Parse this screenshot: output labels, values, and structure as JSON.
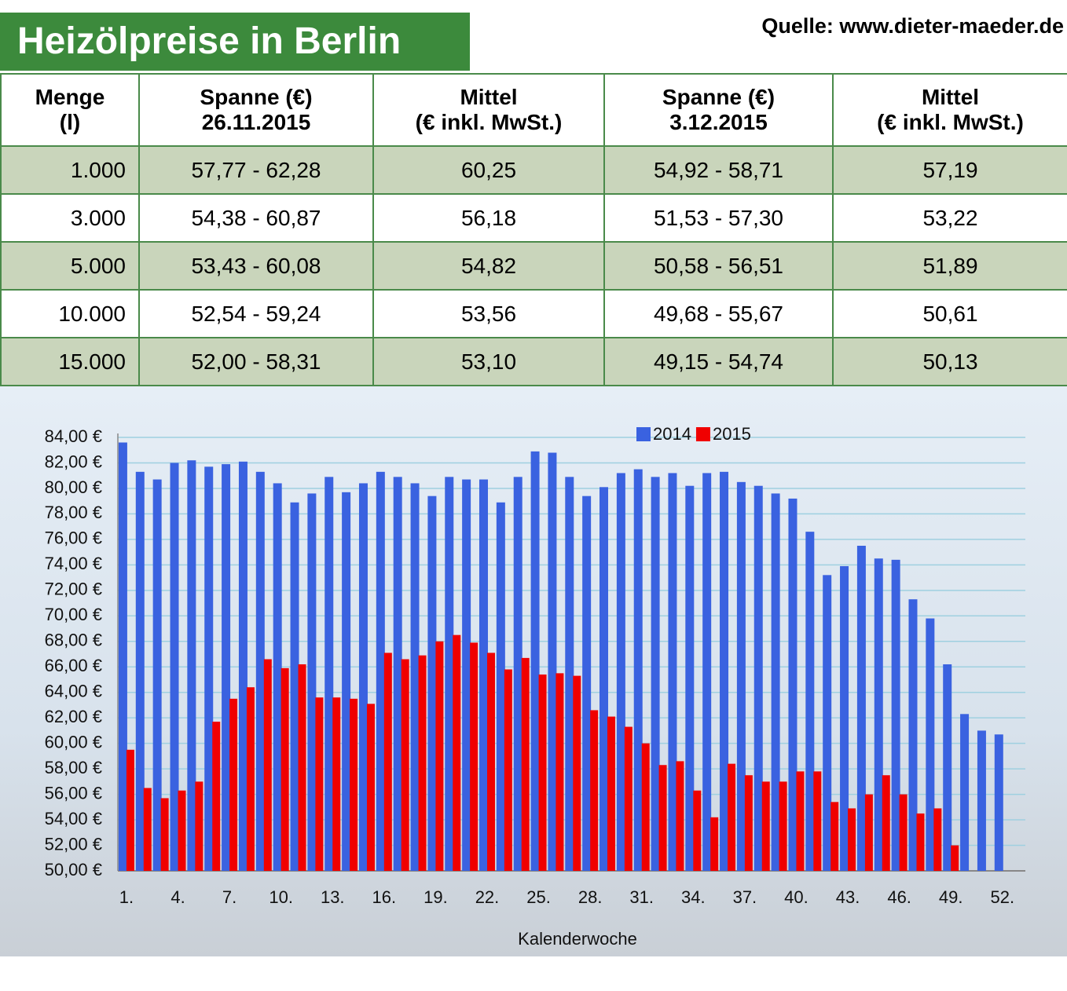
{
  "header": {
    "title": "Heizölpreise in Berlin",
    "source": "Quelle: www.dieter-maeder.de"
  },
  "table": {
    "header": [
      [
        "Menge",
        "(l)"
      ],
      [
        "Spanne (€)",
        "26.11.2015"
      ],
      [
        "Mittel",
        "(€ inkl. MwSt.)"
      ],
      [
        "Spanne (€)",
        "3.12.2015"
      ],
      [
        "Mittel",
        "(€ inkl. MwSt.)"
      ]
    ],
    "rows": [
      [
        "1.000",
        "57,77 - 62,28",
        "60,25",
        "54,92 - 58,71",
        "57,19"
      ],
      [
        "3.000",
        "54,38 - 60,87",
        "56,18",
        "51,53 - 57,30",
        "53,22"
      ],
      [
        "5.000",
        "53,43 - 60,08",
        "54,82",
        "50,58 - 56,51",
        "51,89"
      ],
      [
        "10.000",
        "52,54 - 59,24",
        "53,56",
        "49,68 - 55,67",
        "50,61"
      ],
      [
        "15.000",
        "52,00 - 58,31",
        "53,10",
        "49,15 - 54,74",
        "50,13"
      ]
    ]
  },
  "chart_data": {
    "type": "bar",
    "x_label": "Kalenderwoche",
    "categories": [
      "1.",
      null,
      null,
      "4.",
      null,
      null,
      "7.",
      null,
      null,
      "10.",
      null,
      null,
      "13.",
      null,
      null,
      "16.",
      null,
      null,
      "19.",
      null,
      null,
      "22.",
      null,
      null,
      "25.",
      null,
      null,
      "28.",
      null,
      null,
      "31.",
      null,
      null,
      "34.",
      null,
      null,
      "37.",
      null,
      null,
      "40.",
      null,
      null,
      "43.",
      null,
      null,
      "46.",
      null,
      null,
      "49.",
      null,
      null,
      "52."
    ],
    "series": [
      {
        "name": "2014",
        "color": "#3a62e0",
        "values": [
          83.6,
          81.3,
          80.7,
          82.0,
          82.2,
          81.7,
          81.9,
          82.1,
          81.3,
          80.4,
          78.9,
          79.6,
          80.9,
          79.7,
          80.4,
          81.3,
          80.9,
          80.4,
          79.4,
          80.9,
          80.7,
          80.7,
          78.9,
          80.9,
          82.9,
          82.8,
          80.9,
          79.4,
          80.1,
          81.2,
          81.5,
          80.9,
          81.2,
          80.2,
          81.2,
          81.3,
          80.5,
          80.2,
          79.6,
          79.2,
          76.6,
          73.2,
          73.9,
          75.5,
          74.5,
          74.4,
          71.3,
          69.8,
          66.2,
          62.3,
          61.0,
          60.7
        ]
      },
      {
        "name": "2015",
        "color": "#f00000",
        "values": [
          59.5,
          56.5,
          55.7,
          56.3,
          57.0,
          61.7,
          63.5,
          64.4,
          66.6,
          65.9,
          66.2,
          63.6,
          63.6,
          63.5,
          63.1,
          67.1,
          66.6,
          66.9,
          68.0,
          68.5,
          67.9,
          67.1,
          65.8,
          66.7,
          65.4,
          65.5,
          65.3,
          62.6,
          62.1,
          61.3,
          60.0,
          58.3,
          58.6,
          56.3,
          54.2,
          58.4,
          57.5,
          57.0,
          57.0,
          57.8,
          57.8,
          55.4,
          54.9,
          56.0,
          57.5,
          56.0,
          54.5,
          54.9,
          52.0,
          null,
          null,
          null
        ]
      }
    ],
    "ylim": [
      50,
      84
    ],
    "yticks": [
      {
        "value": 50,
        "label": "50,00 €"
      },
      {
        "value": 52,
        "label": "52,00 €"
      },
      {
        "value": 54,
        "label": "54,00 €"
      },
      {
        "value": 56,
        "label": "56,00 €"
      },
      {
        "value": 58,
        "label": "58,00 €"
      },
      {
        "value": 60,
        "label": "60,00 €"
      },
      {
        "value": 62,
        "label": "62,00 €"
      },
      {
        "value": 64,
        "label": "64,00 €"
      },
      {
        "value": 66,
        "label": "66,00 €"
      },
      {
        "value": 68,
        "label": "68,00 €"
      },
      {
        "value": 70,
        "label": "70,00 €"
      },
      {
        "value": 72,
        "label": "72,00 €"
      },
      {
        "value": 74,
        "label": "74,00 €"
      },
      {
        "value": 76,
        "label": "76,00 €"
      },
      {
        "value": 78,
        "label": "78,00 €"
      },
      {
        "value": 80,
        "label": "80,00 €"
      },
      {
        "value": 82,
        "label": "82,00 €"
      },
      {
        "value": 84,
        "label": "84,00 €"
      }
    ],
    "grid": true,
    "legend": "top"
  }
}
